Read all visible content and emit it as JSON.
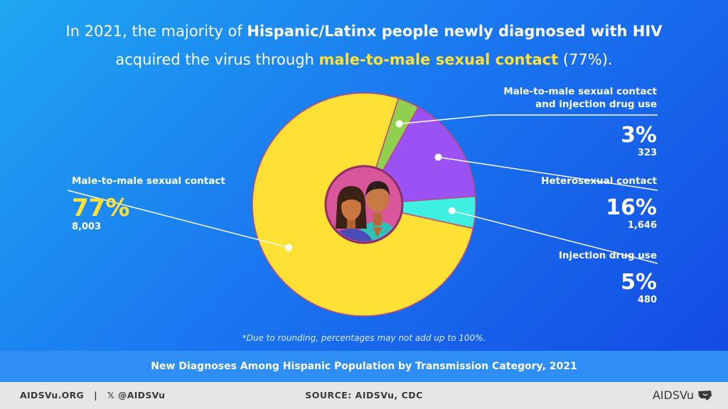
{
  "headline": {
    "line1_a": "In 2021, the majority of ",
    "line1_b": "Hispanic/Latinx people newly diagnosed with HIV",
    "line2_a": "acquired the virus through ",
    "line2_b": "male-to-male sexual contact",
    "line2_c": " (77%)."
  },
  "chart_data": {
    "type": "pie",
    "slices": [
      {
        "label": "Male-to-male sexual contact",
        "percent_label": "77%",
        "count_label": "8,003",
        "value": 8003,
        "color": "#ffe034"
      },
      {
        "label": "Male-to-male sexual contact and injection drug use",
        "percent_label": "3%",
        "count_label": "323",
        "value": 323,
        "color": "#8fd14f"
      },
      {
        "label": "Heterosexual contact",
        "percent_label": "16%",
        "count_label": "1,646",
        "value": 1646,
        "color": "#9a52f5"
      },
      {
        "label": "Injection drug use",
        "percent_label": "5%",
        "count_label": "480",
        "value": 480,
        "color": "#3ef0e0"
      }
    ]
  },
  "labels": {
    "msm": {
      "line1": "Male-to-male sexual contact",
      "pct": "77%",
      "count": "8,003"
    },
    "msm_idu": {
      "line1": "Male-to-male sexual contact",
      "line2": "and injection drug use",
      "pct": "3%",
      "count": "323"
    },
    "hetero": {
      "line1": "Heterosexual contact",
      "pct": "16%",
      "count": "1,646"
    },
    "idu": {
      "line1": "Injection drug use",
      "pct": "5%",
      "count": "480"
    }
  },
  "colors": {
    "accent_yellow": "#ffe034",
    "center_pink": "#d8569a",
    "center_ring": "#8e2d6a"
  },
  "center_icon": "people-icon",
  "note": "*Due to rounding, percentages may not add up to 100%.",
  "subtitle": "New Diagnoses Among Hispanic Population by Transmission Category, 2021",
  "footer": {
    "site": "AIDSVu.ORG",
    "separator": "|",
    "x_glyph": "𝕏",
    "handle": "@AIDSVu",
    "source": "SOURCE: AIDSVu, CDC",
    "logo_text": "AIDSVu"
  }
}
